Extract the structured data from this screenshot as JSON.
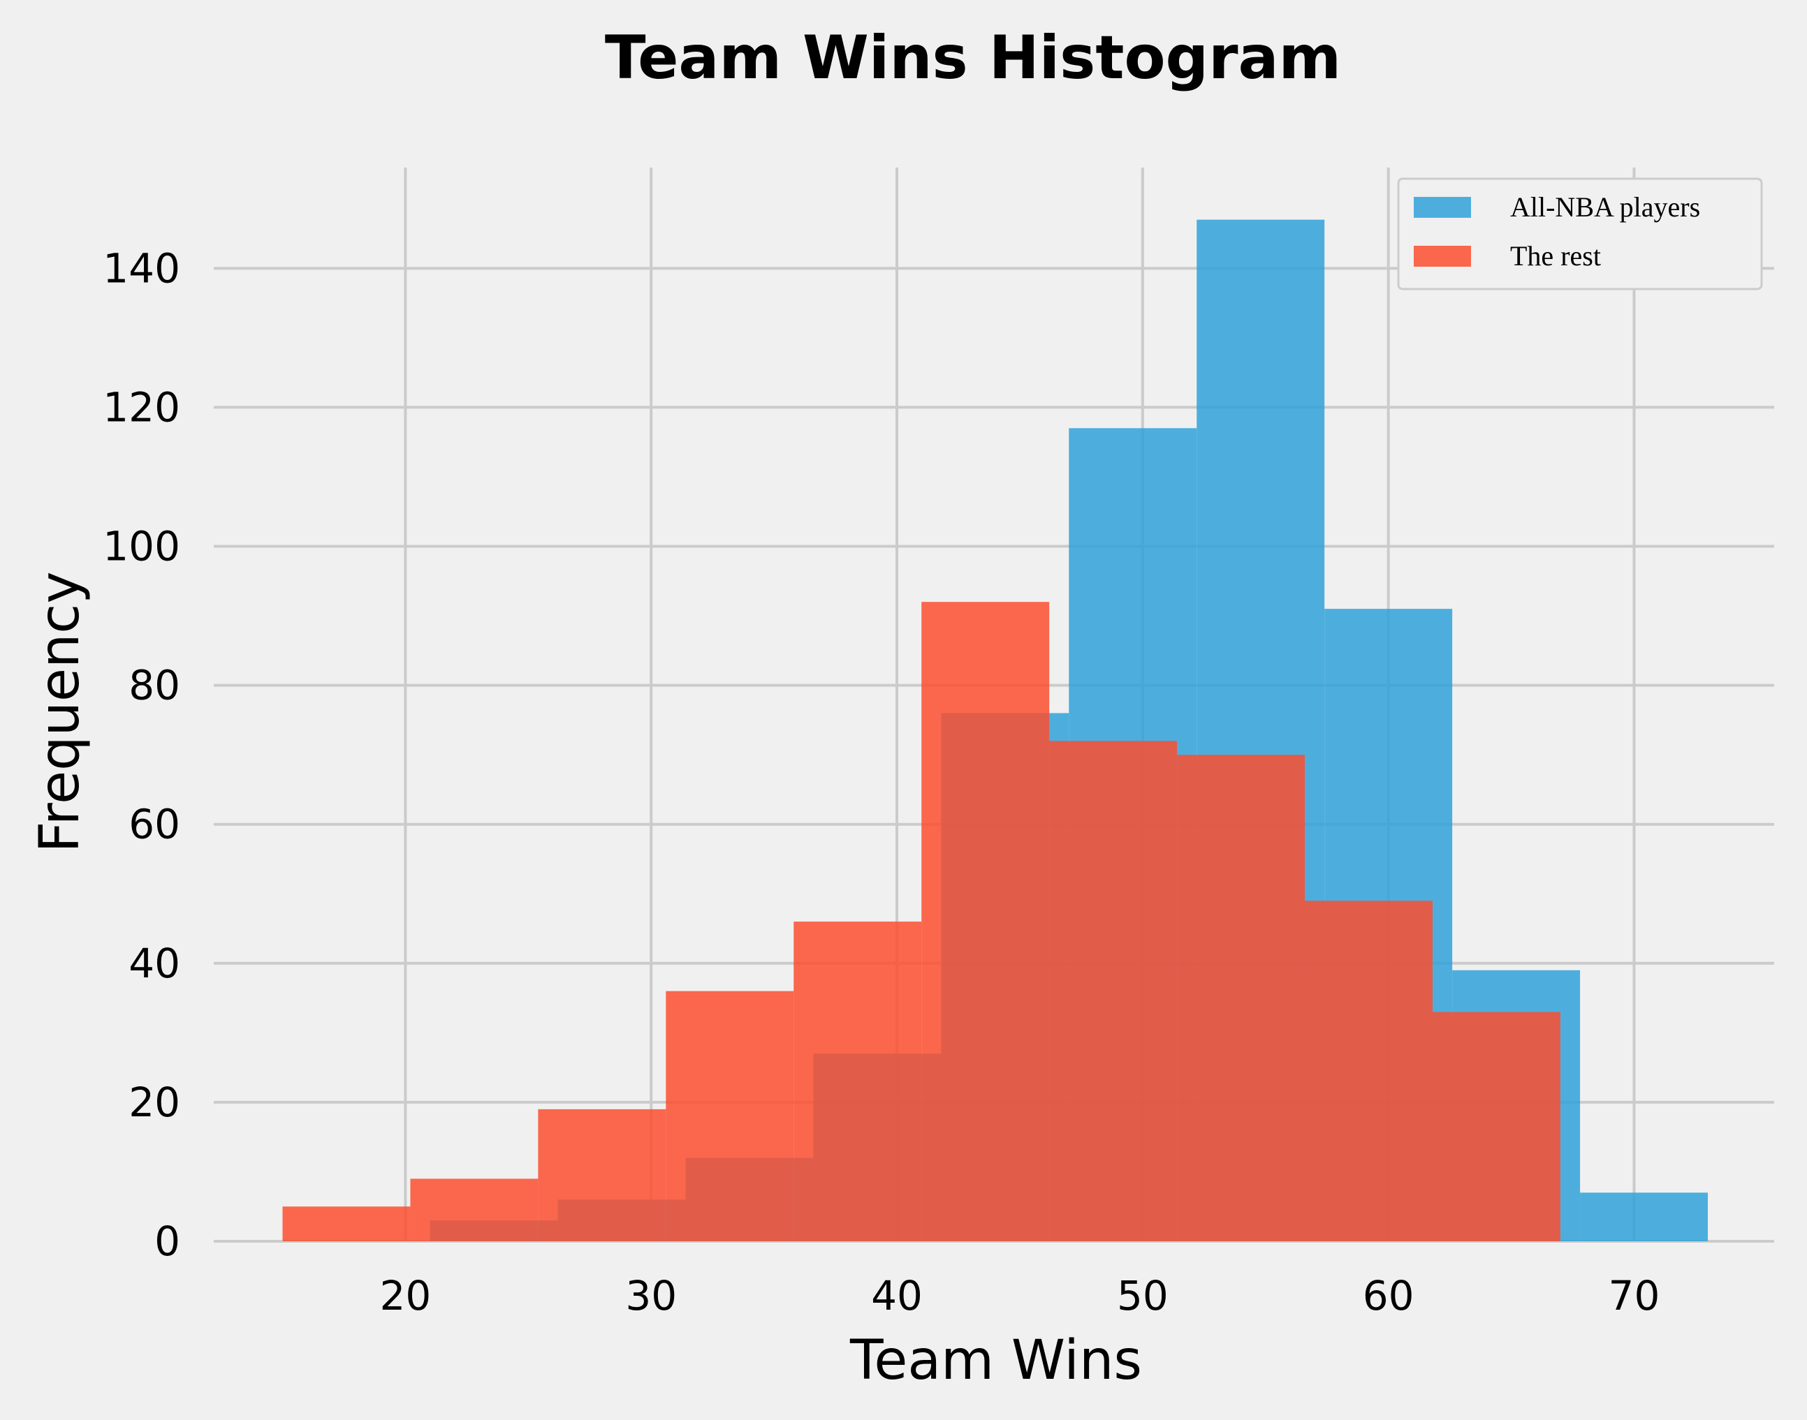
{
  "chart_data": {
    "type": "bar",
    "subtype": "histogram",
    "title": "Team Wins Histogram",
    "xlabel": "Team Wins",
    "ylabel": "Frequency",
    "xlim": [
      12.2,
      75.7
    ],
    "ylim": [
      0,
      154.5
    ],
    "xticks": [
      20,
      30,
      40,
      50,
      60,
      70
    ],
    "yticks": [
      0,
      20,
      40,
      60,
      80,
      100,
      120,
      140
    ],
    "grid": true,
    "legend_position": "top-right",
    "series": [
      {
        "name": "All-NBA players",
        "color": "#30a2da",
        "bins": [
          {
            "x0": 21.0,
            "x1": 26.2,
            "value": 3
          },
          {
            "x0": 26.2,
            "x1": 31.4,
            "value": 6
          },
          {
            "x0": 31.4,
            "x1": 36.6,
            "value": 12
          },
          {
            "x0": 36.6,
            "x1": 41.8,
            "value": 27
          },
          {
            "x0": 41.8,
            "x1": 47.0,
            "value": 76
          },
          {
            "x0": 47.0,
            "x1": 52.2,
            "value": 117
          },
          {
            "x0": 52.2,
            "x1": 57.4,
            "value": 147
          },
          {
            "x0": 57.4,
            "x1": 62.6,
            "value": 91
          },
          {
            "x0": 62.6,
            "x1": 67.8,
            "value": 39
          },
          {
            "x0": 67.8,
            "x1": 73.0,
            "value": 7
          }
        ]
      },
      {
        "name": "The rest",
        "color": "#fc4f30",
        "bins": [
          {
            "x0": 15.0,
            "x1": 20.2,
            "value": 5
          },
          {
            "x0": 20.2,
            "x1": 25.4,
            "value": 9
          },
          {
            "x0": 25.4,
            "x1": 30.6,
            "value": 19
          },
          {
            "x0": 30.6,
            "x1": 35.8,
            "value": 36
          },
          {
            "x0": 35.8,
            "x1": 41.0,
            "value": 46
          },
          {
            "x0": 41.0,
            "x1": 46.2,
            "value": 92
          },
          {
            "x0": 46.2,
            "x1": 51.4,
            "value": 72
          },
          {
            "x0": 51.4,
            "x1": 56.6,
            "value": 70
          },
          {
            "x0": 56.6,
            "x1": 61.8,
            "value": 49
          },
          {
            "x0": 61.8,
            "x1": 67.0,
            "value": 33
          }
        ]
      }
    ]
  }
}
